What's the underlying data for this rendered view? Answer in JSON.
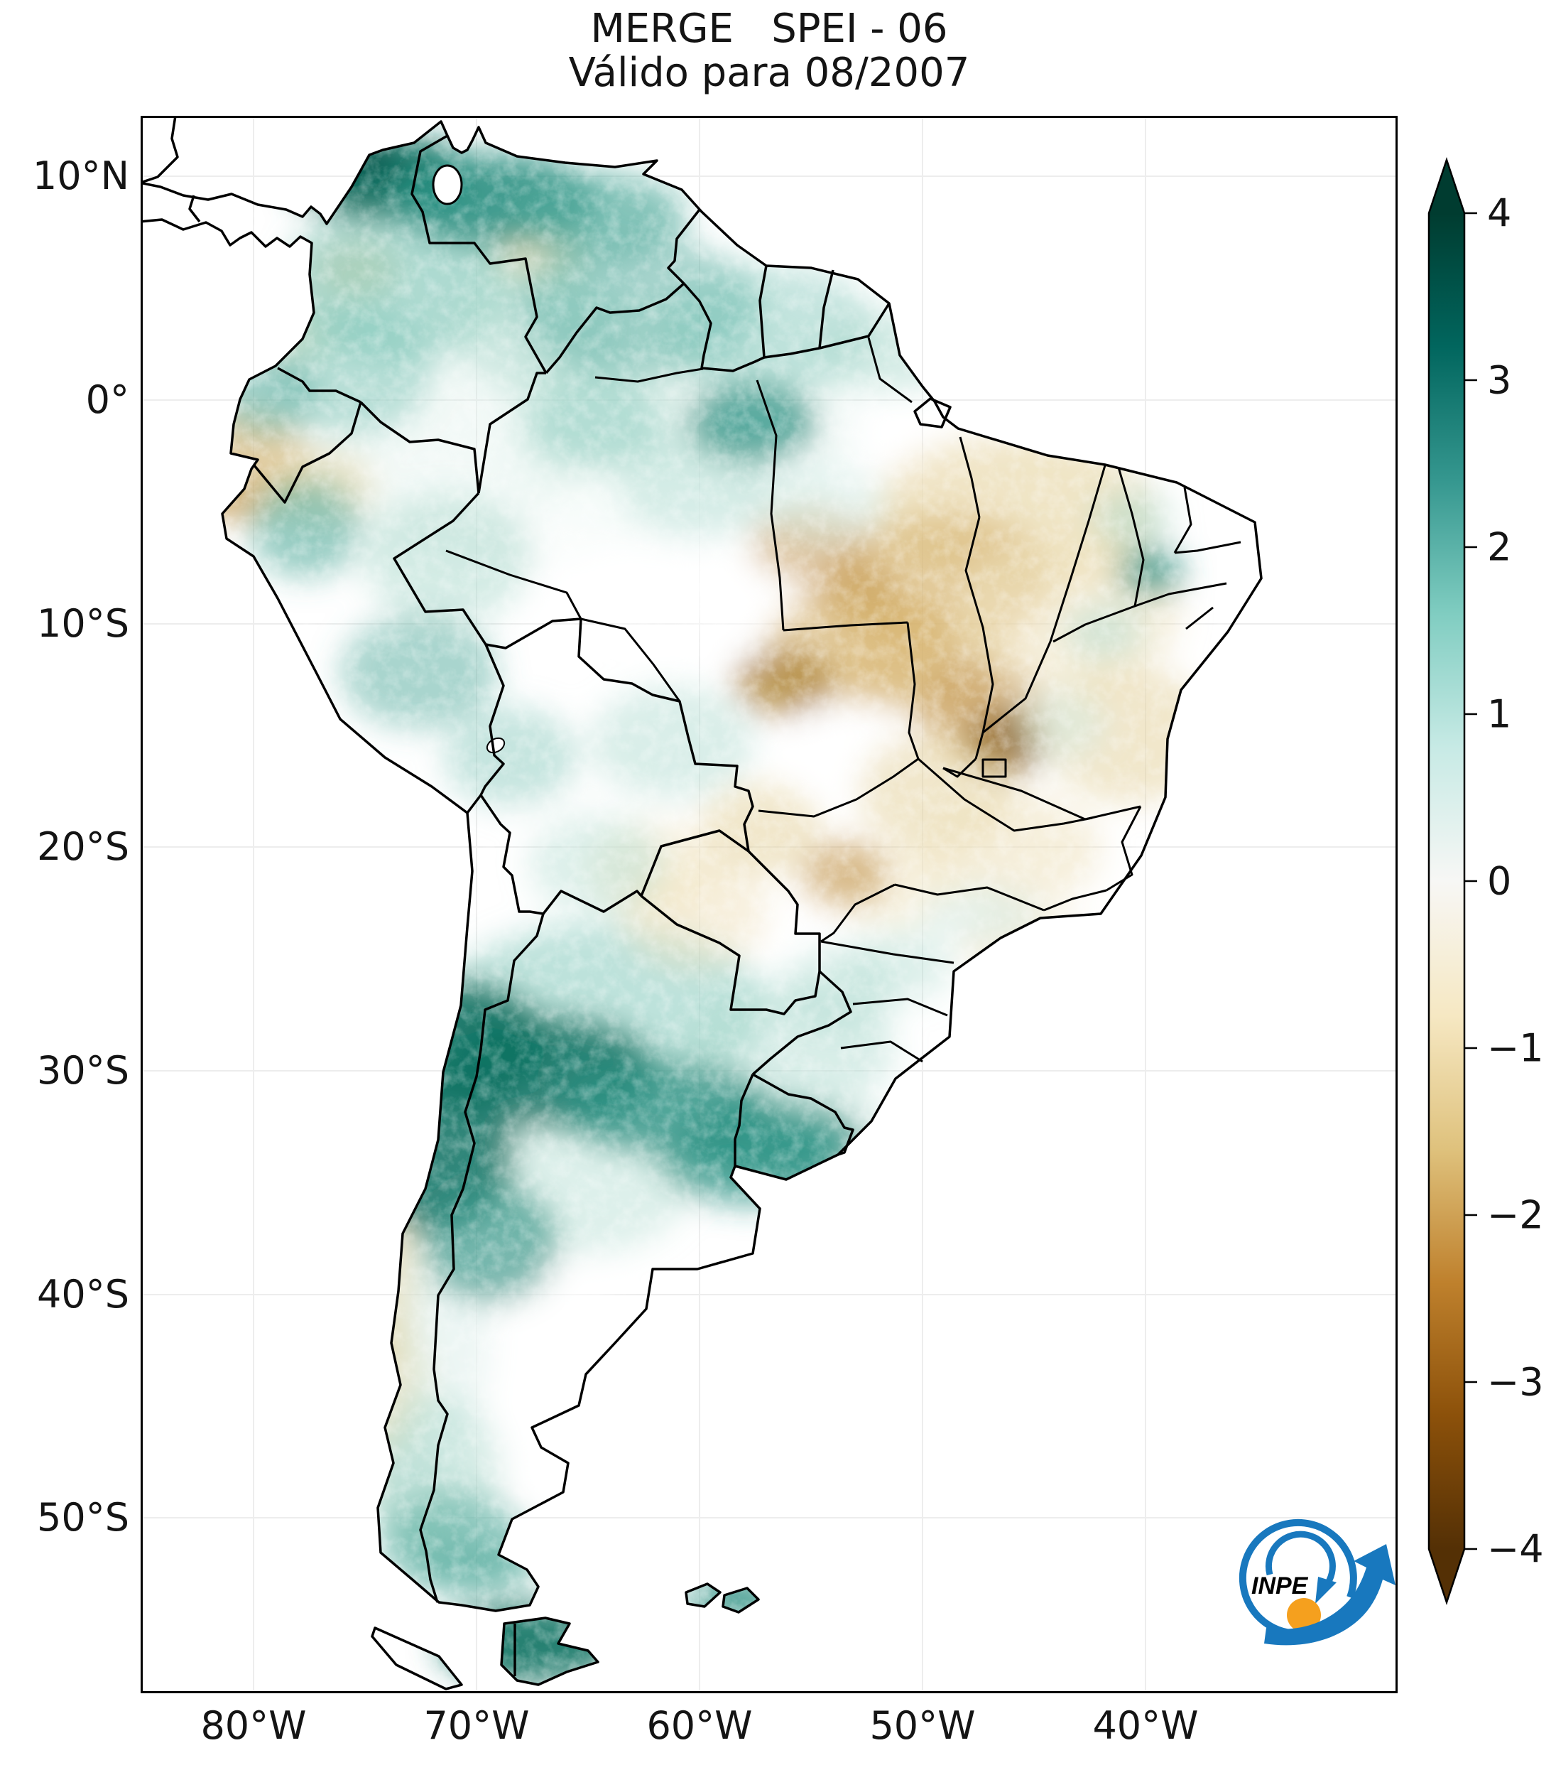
{
  "title": {
    "line1": "MERGE   SPEI - 06",
    "line2": "Válido para 08/2007"
  },
  "axes": {
    "lat_ticks": [
      "10°N",
      "0°",
      "10°S",
      "20°S",
      "30°S",
      "40°S",
      "50°S"
    ],
    "lon_ticks": [
      "80°W",
      "70°W",
      "60°W",
      "50°W",
      "40°W"
    ]
  },
  "colorbar": {
    "ticks": [
      "4",
      "3",
      "2",
      "1",
      "0",
      "−1",
      "−2",
      "−3",
      "−4"
    ],
    "min": -4,
    "max": 4,
    "extend": "both",
    "colormap": "BrBG",
    "stops": [
      "#543005",
      "#8c510a",
      "#bf812d",
      "#dfc27d",
      "#f6e8c3",
      "#f7f7f5",
      "#c7eae5",
      "#80cdc1",
      "#35978f",
      "#01665e",
      "#003c30"
    ]
  },
  "logo": {
    "text": "INPE",
    "blue": "#1878be",
    "orange": "#f5a01e"
  },
  "map_data": {
    "type": "heatmap",
    "variable": "SPEI-06 (Standardized Precipitation-Evapotranspiration Index, 6 months)",
    "valid_for": "08/2007",
    "region": "South America",
    "value_range": [
      -4,
      4
    ],
    "positive_color_meaning": "wet anomaly (teal/green)",
    "negative_color_meaning": "dry anomaly (tan/brown)",
    "notable_features": [
      "strong wet anomaly over northern Colombia / Venezuela Caribbean coast",
      "strong wet band across central Argentina (~30-40S)",
      "wet anomaly over Tierra del Fuego and Falkland Islands",
      "dry anomalies over central-eastern Brazil with darkest spot near Distrito Federal",
      "dry anomaly over Ecuador and northern Peru",
      "dry strip in western Patagonia"
    ],
    "blobs": [
      [
        500,
        400,
        300,
        240,
        "#d4ece6",
        0.3
      ],
      [
        760,
        430,
        250,
        180,
        "#d4ece6",
        0.28
      ],
      [
        652,
        1256,
        230,
        120,
        "#7ec5b8",
        0.5
      ],
      [
        912,
        1312,
        150,
        90,
        "#abd9ce",
        0.45
      ],
      [
        622,
        1502,
        150,
        100,
        "#abd9ce",
        0.4
      ],
      [
        700,
        612,
        160,
        110,
        "#ffffff",
        0.6
      ],
      [
        560,
        1762,
        130,
        160,
        "#ffffff",
        0.55
      ],
      [
        1002,
        882,
        80,
        60,
        "#ffffff",
        0.5
      ],
      [
        872,
        682,
        100,
        80,
        "#ffffff",
        0.5
      ],
      [
        1352,
        772,
        80,
        60,
        "#ffffff",
        0.45
      ],
      [
        640,
        940,
        120,
        90,
        "#ffffff",
        0.4
      ],
      [
        1100,
        520,
        120,
        60,
        "#ffffff",
        0.4
      ],
      [
        150,
        492,
        85,
        75,
        "#d6b26c",
        0.6
      ],
      [
        120,
        532,
        45,
        40,
        "#c29347",
        0.5
      ],
      [
        252,
        522,
        75,
        50,
        "#e4cf97",
        0.5
      ],
      [
        300,
        216,
        62,
        40,
        "#e4cf97",
        0.55
      ],
      [
        560,
        196,
        65,
        40,
        "#e4cf97",
        0.5
      ],
      [
        222,
        302,
        60,
        40,
        "#efe2bd",
        0.45
      ],
      [
        1230,
        562,
        200,
        110,
        "#e4cf97",
        0.55
      ],
      [
        1132,
        652,
        150,
        95,
        "#d6b26c",
        0.6
      ],
      [
        942,
        602,
        82,
        52,
        "#c29347",
        0.55
      ],
      [
        1006,
        672,
        66,
        46,
        "#c29347",
        0.6
      ],
      [
        1012,
        746,
        130,
        80,
        "#d6b26c",
        0.6
      ],
      [
        906,
        796,
        70,
        48,
        "#a4751f",
        0.7
      ],
      [
        1102,
        762,
        120,
        80,
        "#d6b26c",
        0.55
      ],
      [
        1182,
        832,
        90,
        70,
        "#c29347",
        0.6
      ],
      [
        1216,
        882,
        56,
        46,
        "#8a5a10",
        0.85
      ],
      [
        1302,
        702,
        160,
        110,
        "#efe2bd",
        0.55
      ],
      [
        1392,
        872,
        120,
        95,
        "#e4cf97",
        0.5
      ],
      [
        1122,
        952,
        110,
        85,
        "#e4cf97",
        0.5
      ],
      [
        1222,
        1032,
        130,
        80,
        "#efe2bd",
        0.55
      ],
      [
        1062,
        1086,
        90,
        55,
        "#efe2bd",
        0.45
      ],
      [
        992,
        1066,
        62,
        46,
        "#c29347",
        0.6
      ],
      [
        872,
        1006,
        86,
        66,
        "#e4cf97",
        0.5
      ],
      [
        782,
        1122,
        100,
        75,
        "#efe2bd",
        0.5
      ],
      [
        1242,
        1162,
        90,
        50,
        "#efe2bd",
        0.5
      ],
      [
        722,
        1062,
        90,
        70,
        "#efe2bd",
        0.45
      ],
      [
        332,
        1652,
        60,
        120,
        "#e4cf97",
        0.55
      ],
      [
        352,
        1782,
        55,
        90,
        "#e4cf97",
        0.5
      ],
      [
        302,
        1872,
        50,
        70,
        "#efe2bd",
        0.5
      ],
      [
        360,
        235,
        160,
        110,
        "#7ec5b8",
        0.6
      ],
      [
        560,
        300,
        120,
        90,
        "#abd9ce",
        0.5
      ],
      [
        300,
        360,
        110,
        90,
        "#7ec5b8",
        0.5
      ],
      [
        178,
        392,
        68,
        60,
        "#52ab9d",
        0.55
      ],
      [
        232,
        580,
        78,
        70,
        "#52ab9d",
        0.6
      ],
      [
        700,
        270,
        170,
        100,
        "#52ab9d",
        0.5
      ],
      [
        885,
        300,
        150,
        90,
        "#7ec5b8",
        0.45
      ],
      [
        1050,
        332,
        100,
        55,
        "#abd9ce",
        0.5
      ],
      [
        640,
        432,
        100,
        65,
        "#7ec5b8",
        0.5
      ],
      [
        782,
        522,
        110,
        70,
        "#abd9ce",
        0.45
      ],
      [
        962,
        546,
        92,
        56,
        "#d4ece6",
        0.5
      ],
      [
        432,
        622,
        120,
        90,
        "#abd9ce",
        0.5
      ],
      [
        392,
        782,
        110,
        80,
        "#52ab9d",
        0.5
      ],
      [
        522,
        902,
        95,
        70,
        "#7ec5b8",
        0.45
      ],
      [
        748,
        882,
        115,
        80,
        "#abd9ce",
        0.45
      ],
      [
        642,
        1052,
        95,
        70,
        "#abd9ce",
        0.4
      ],
      [
        1396,
        566,
        56,
        40,
        "#abd9ce",
        0.5
      ],
      [
        1356,
        726,
        56,
        40,
        "#abd9ce",
        0.45
      ],
      [
        1292,
        856,
        66,
        50,
        "#d4ece6",
        0.5
      ],
      [
        1182,
        1126,
        86,
        42,
        "#d4ece6",
        0.5
      ],
      [
        1066,
        1196,
        76,
        52,
        "#abd9ce",
        0.4
      ],
      [
        980,
        1232,
        80,
        60,
        "#abd9ce",
        0.45
      ],
      [
        962,
        1432,
        100,
        65,
        "#d4ece6",
        0.5
      ],
      [
        422,
        1722,
        70,
        160,
        "#d4ece6",
        0.45
      ],
      [
        412,
        1906,
        95,
        105,
        "#abd9ce",
        0.5
      ],
      [
        380,
        1952,
        60,
        90,
        "#abd9ce",
        0.5
      ],
      [
        1422,
        642,
        46,
        34,
        "#2b9183",
        0.8
      ],
      [
        860,
        432,
        92,
        56,
        "#2b9183",
        0.75
      ],
      [
        340,
        85,
        130,
        60,
        "#107263",
        0.95
      ],
      [
        500,
        118,
        145,
        65,
        "#2b9183",
        0.9
      ],
      [
        648,
        140,
        120,
        60,
        "#52ab9d",
        0.7
      ],
      [
        300,
        60,
        70,
        40,
        "#085c50",
        0.85
      ],
      [
        432,
        1302,
        140,
        85,
        "#107263",
        0.9
      ],
      [
        576,
        1346,
        150,
        78,
        "#107263",
        0.85
      ],
      [
        736,
        1396,
        150,
        64,
        "#2b9183",
        0.8
      ],
      [
        892,
        1442,
        128,
        56,
        "#2b9183",
        0.75
      ],
      [
        860,
        1472,
        130,
        60,
        "#2b9183",
        0.7
      ],
      [
        406,
        1456,
        118,
        115,
        "#107263",
        0.85
      ],
      [
        492,
        1586,
        95,
        85,
        "#2b9183",
        0.65
      ],
      [
        442,
        2006,
        105,
        70,
        "#52ab9d",
        0.55
      ],
      [
        470,
        2042,
        90,
        40,
        "#52ab9d",
        0.6
      ],
      [
        545,
        2150,
        125,
        55,
        "#107263",
        0.9
      ],
      [
        838,
        2088,
        70,
        30,
        "#2b9183",
        0.9
      ]
    ]
  }
}
